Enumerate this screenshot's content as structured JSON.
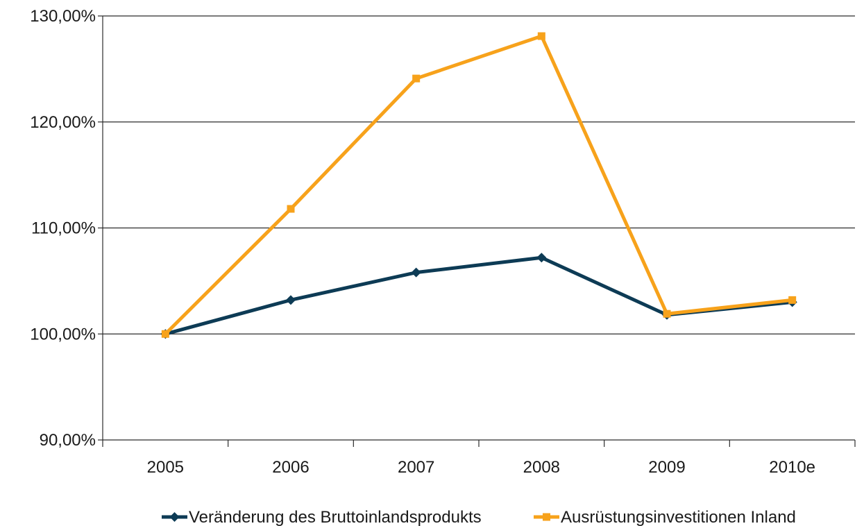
{
  "chart_data": {
    "type": "line",
    "title": "",
    "xlabel": "",
    "ylabel": "",
    "categories": [
      "2005",
      "2006",
      "2007",
      "2008",
      "2009",
      "2010e"
    ],
    "ylim": [
      0.9,
      1.3
    ],
    "y_ticks": [
      0.9,
      1.0,
      1.1,
      1.2,
      1.3
    ],
    "y_tick_labels": [
      "90,00%",
      "100,00%",
      "110,00%",
      "120,00%",
      "130,00%"
    ],
    "grid": "horizontal",
    "legend_position": "bottom",
    "series": [
      {
        "name": "Veränderung des Bruttoinlandsprodukts",
        "color": "#0d3b55",
        "marker": "diamond",
        "values": [
          1.0,
          1.032,
          1.058,
          1.072,
          1.018,
          1.03
        ]
      },
      {
        "name": "Ausrüstungsinvestitionen Inland",
        "color": "#f7a21b",
        "marker": "square",
        "values": [
          1.0,
          1.118,
          1.241,
          1.281,
          1.019,
          1.032
        ]
      }
    ]
  }
}
